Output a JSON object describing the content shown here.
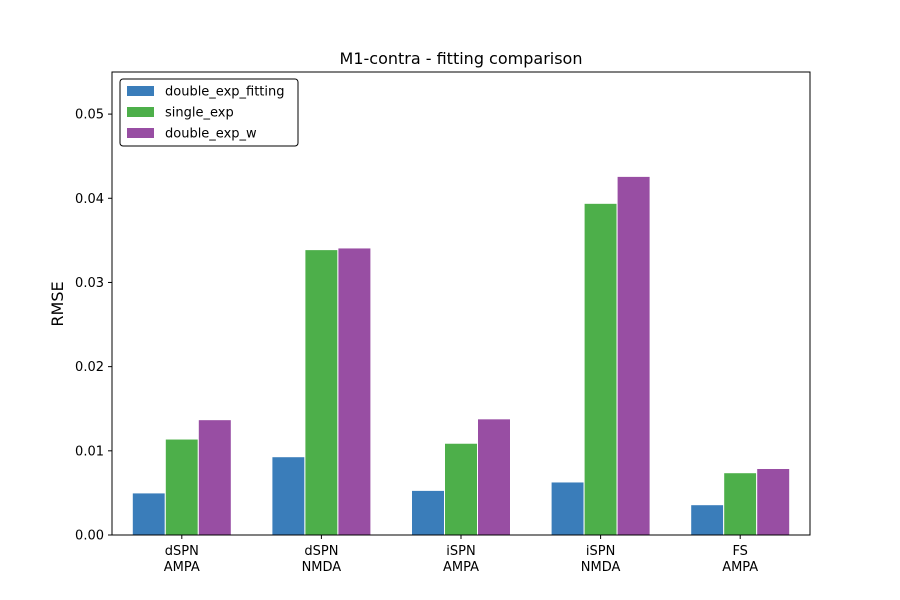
{
  "chart_data": {
    "type": "bar",
    "title": "M1-contra  -  fitting comparison",
    "xlabel": "",
    "ylabel": "RMSE",
    "categories": [
      [
        "dSPN",
        "AMPA"
      ],
      [
        "dSPN",
        "NMDA"
      ],
      [
        "iSPN",
        "AMPA"
      ],
      [
        "iSPN",
        "NMDA"
      ],
      [
        "FS",
        "AMPA"
      ]
    ],
    "series": [
      {
        "name": "double_exp_fitting",
        "color": "#3a7dba",
        "values": [
          0.005,
          0.0093,
          0.0053,
          0.0063,
          0.0036
        ]
      },
      {
        "name": "single_exp",
        "color": "#4daf4a",
        "values": [
          0.0114,
          0.0339,
          0.0109,
          0.0394,
          0.0074
        ]
      },
      {
        "name": "double_exp_w",
        "color": "#984ea3",
        "values": [
          0.0137,
          0.0341,
          0.0138,
          0.0426,
          0.0079
        ]
      }
    ],
    "ylim": [
      0,
      0.055
    ],
    "yticks": [
      "0.00",
      "0.01",
      "0.02",
      "0.03",
      "0.04",
      "0.05"
    ],
    "ytick_values": [
      0,
      0.01,
      0.02,
      0.03,
      0.04,
      0.05
    ],
    "legend_position": "top-left",
    "grid": false
  }
}
